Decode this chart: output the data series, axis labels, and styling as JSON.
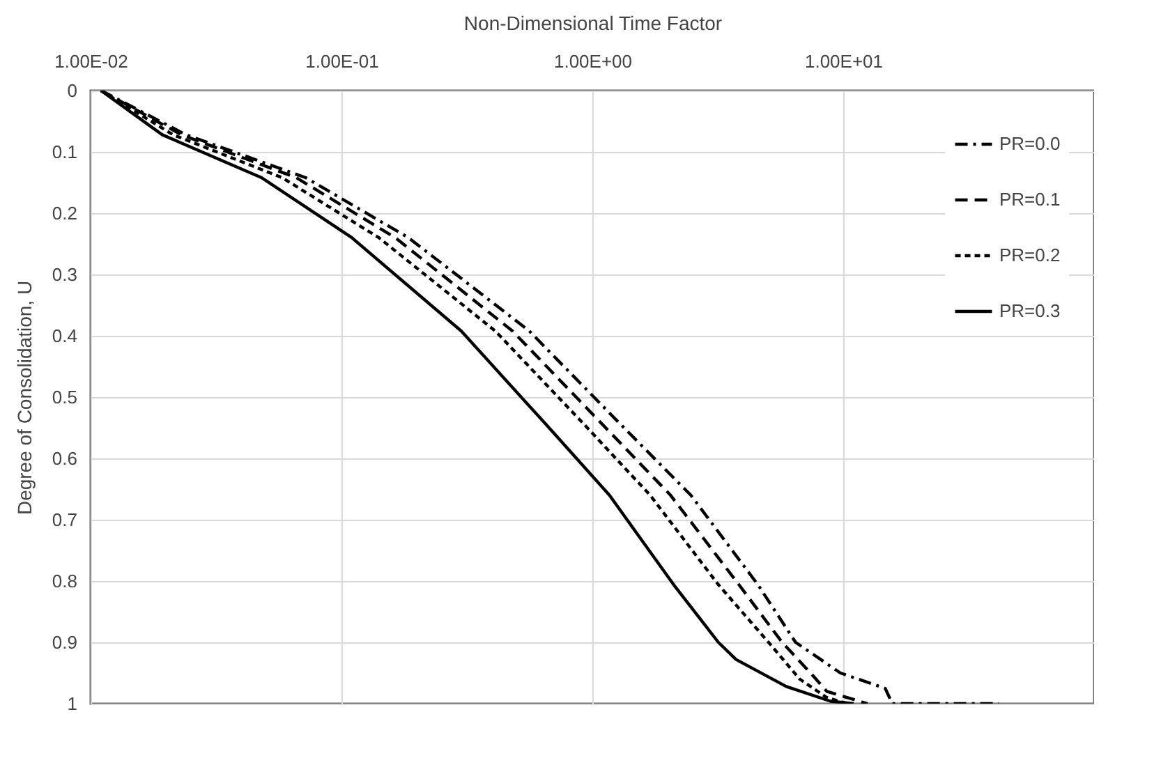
{
  "chart_data": {
    "type": "line",
    "xlabel": "Non-Dimensional Time Factor",
    "ylabel": "Degree of Consolidation, U",
    "log": "x",
    "xlim": [
      0.01,
      100
    ],
    "xticks": [
      {
        "value": 0.01,
        "label": "1.00E-02"
      },
      {
        "value": 0.1,
        "label": "1.00E-01"
      },
      {
        "value": 1,
        "label": "1.00E+00"
      },
      {
        "value": 10,
        "label": "1.00E+01"
      },
      {
        "value": 100,
        "label": null
      }
    ],
    "ylim": [
      1,
      0
    ],
    "yticks": [
      0,
      0.1,
      0.2,
      0.3,
      0.4,
      0.5,
      0.6,
      0.7,
      0.8,
      0.9,
      1
    ],
    "grid": true,
    "legend": "top right",
    "marker": "none",
    "series": [
      {
        "name": "PR=0.0",
        "color": "#000000",
        "line_style": "dashdot",
        "x": [
          0.011,
          0.024,
          0.072,
          0.185,
          0.56,
          1.3,
          2.47,
          4.57,
          6.46,
          9.75,
          14.7,
          15.7,
          41.7
        ],
        "values": [
          0,
          0.072,
          0.142,
          0.24,
          0.392,
          0.545,
          0.66,
          0.806,
          0.9,
          0.95,
          0.975,
          1,
          1
        ]
      },
      {
        "name": "PR=0.1",
        "color": "#000000",
        "line_style": "dashed",
        "x": [
          0.011,
          0.023,
          0.066,
          0.164,
          0.48,
          1.1,
          2.05,
          3.84,
          5.71,
          7.41,
          8.6,
          12.5
        ],
        "values": [
          0,
          0.072,
          0.142,
          0.24,
          0.392,
          0.545,
          0.66,
          0.806,
          0.9,
          0.95,
          0.98,
          1
        ]
      },
      {
        "name": "PR=0.2",
        "color": "#000000",
        "line_style": "dotted",
        "x": [
          0.011,
          0.0213,
          0.058,
          0.141,
          0.41,
          0.93,
          1.7,
          3.18,
          5.04,
          6.71,
          8.6,
          10.4
        ],
        "values": [
          0,
          0.072,
          0.142,
          0.24,
          0.392,
          0.545,
          0.66,
          0.806,
          0.9,
          0.96,
          0.99,
          1
        ]
      },
      {
        "name": "PR=0.3",
        "color": "#000000",
        "line_style": "solid",
        "x": [
          0.011,
          0.0193,
          0.048,
          0.11,
          0.3,
          0.655,
          1.17,
          2.11,
          3.18,
          3.74,
          5.93,
          8.9,
          11.0
        ],
        "values": [
          0,
          0.072,
          0.142,
          0.24,
          0.392,
          0.545,
          0.66,
          0.806,
          0.9,
          0.928,
          0.972,
          0.996,
          1
        ]
      }
    ]
  }
}
